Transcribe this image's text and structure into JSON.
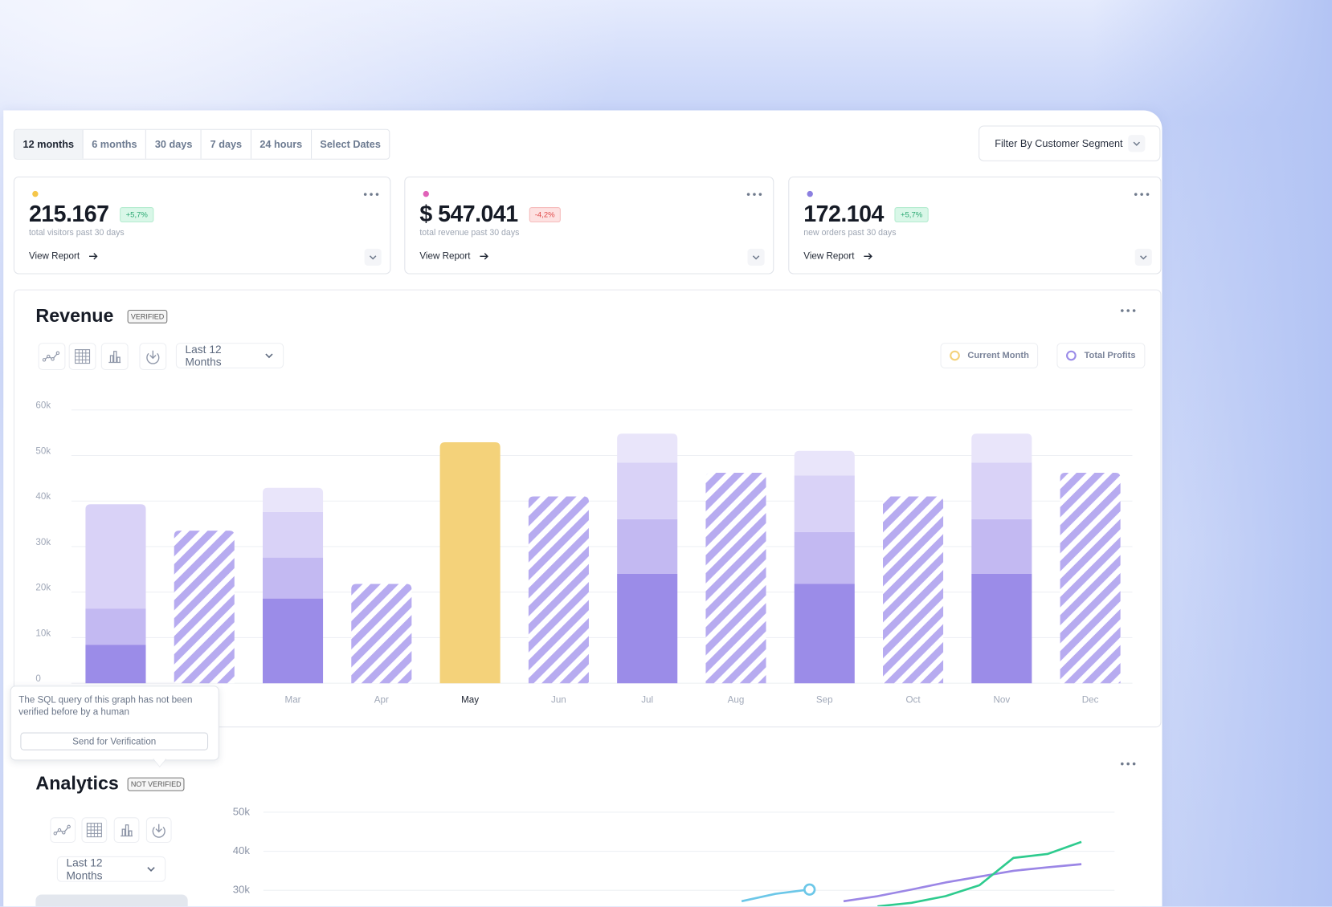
{
  "tabs": [
    "12 months",
    "6 months",
    "30 days",
    "7 days",
    "24 hours",
    "Select Dates"
  ],
  "filter": "Filter By Customer Segment",
  "stats": [
    {
      "value": "215.167",
      "change": "+5,7%",
      "caption": "total visitors past 30 days",
      "link": "View Report"
    },
    {
      "value": "$ 547.041",
      "change": "-4,2%",
      "caption": "total revenue past 30 days",
      "link": "View Report"
    },
    {
      "value": "172.104",
      "change": "+5,7%",
      "caption": "new orders past 30 days",
      "link": "View Report"
    }
  ],
  "revenue": {
    "title": "Revenue",
    "badge": "VERIFIED",
    "range": "Last 12 Months"
  },
  "tooltip": {
    "text": "The SQL query of this graph has not been verified before by a human",
    "button": "Send for Verification"
  },
  "analytics": {
    "title": "Analytics",
    "badge": "NOT VERIFIED",
    "range": "Last 12 Months"
  },
  "chart_data": [
    {
      "type": "bar",
      "stacked": true,
      "categories": [
        null,
        null,
        "Mar",
        "Apr",
        "May",
        "Jun",
        "Jul",
        "Aug",
        "Sep",
        "Oct",
        "Nov",
        "Dec"
      ],
      "series": [
        {
          "name": "Current Month",
          "color": "#f4d27a",
          "values": [
            null,
            null,
            null,
            null,
            52900,
            null,
            null,
            null,
            null,
            null,
            null,
            null
          ]
        },
        {
          "name": "Total Profits",
          "color": "#9b8ce8",
          "values": [
            8400,
            null,
            18600,
            null,
            null,
            null,
            24000,
            null,
            21800,
            null,
            24000,
            null
          ]
        },
        {
          "color": "#c3b9f2",
          "values": [
            8000,
            null,
            9000,
            null,
            null,
            null,
            12000,
            null,
            11400,
            null,
            12000,
            null
          ]
        },
        {
          "color": "#d9d2f7",
          "values": [
            22900,
            null,
            10000,
            null,
            null,
            null,
            12400,
            null,
            12400,
            null,
            12400,
            null
          ]
        },
        {
          "color": "#e9e5fa",
          "values": [
            null,
            null,
            5300,
            null,
            null,
            null,
            6400,
            null,
            5400,
            null,
            6400,
            null
          ]
        },
        {
          "color": "#b7abf0",
          "pattern": "stripes",
          "values": [
            null,
            33500,
            null,
            21800,
            null,
            41000,
            null,
            46200,
            null,
            41000,
            null,
            46200
          ]
        }
      ],
      "ylim": [
        0,
        60000
      ],
      "yticks": [
        0,
        {
          "value": 10000,
          "label": "10k"
        },
        {
          "value": 20000,
          "label": "20k"
        },
        {
          "value": 30000,
          "label": "30k"
        },
        {
          "value": 40000,
          "label": "40k"
        },
        {
          "value": 50000,
          "label": "50k"
        },
        {
          "value": 60000,
          "label": "60k"
        }
      ],
      "grid": true
    },
    {
      "type": "line",
      "categories": [
        null,
        null,
        null,
        null,
        null,
        null,
        null,
        null,
        null,
        null,
        null,
        null,
        null,
        null,
        null,
        null,
        null,
        null,
        null,
        null,
        null,
        null,
        null,
        null,
        null,
        null
      ],
      "series": [
        {
          "color": "#6cc7e8",
          "marker": true,
          "values": [
            null,
            null,
            null,
            null,
            null,
            null,
            null,
            null,
            null,
            null,
            null,
            null,
            null,
            null,
            null,
            27200,
            29100,
            30200,
            null,
            null,
            null,
            null,
            null,
            null,
            null,
            null
          ]
        },
        {
          "color": "#9b86e6",
          "values": [
            null,
            null,
            null,
            null,
            null,
            null,
            null,
            null,
            null,
            null,
            null,
            null,
            null,
            null,
            null,
            null,
            null,
            null,
            27200,
            28500,
            30200,
            32000,
            33500,
            35000,
            35900,
            36700
          ]
        },
        {
          "color": "#2ecb8e",
          "values": [
            null,
            null,
            null,
            null,
            null,
            null,
            null,
            null,
            null,
            null,
            null,
            null,
            null,
            null,
            null,
            null,
            null,
            null,
            null,
            25900,
            26800,
            28500,
            31300,
            38300,
            39300,
            42400
          ]
        }
      ],
      "ylim": [
        30000,
        50000
      ],
      "yticks": [
        {
          "value": 30000,
          "label": "30k"
        },
        {
          "value": 40000,
          "label": "40k"
        },
        {
          "value": 50000,
          "label": "50k"
        }
      ],
      "grid": true
    }
  ]
}
